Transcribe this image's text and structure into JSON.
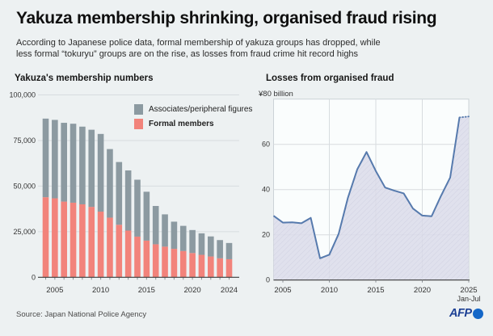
{
  "page": {
    "title": "Yakuza membership shrinking, organised fraud rising",
    "subtitle_line1": "According to Japanese police data, formal membership of yakuza groups has dropped, while",
    "subtitle_line2": "less formal “tokuryu” groups are on the rise, as losses from fraud crime hit record highs",
    "footer": {
      "source": "Source: Japan National Police Agency",
      "logo_text": "AFP"
    }
  },
  "colors": {
    "background": "#edf1f2",
    "bar_associates": "#8c9aa1",
    "bar_formal": "#f2837b",
    "fraud_line": "#567aad",
    "fraud_fill": "#dcdcea",
    "fraud_fill_hatch": "#c9cade",
    "plot_background": "#fafdfd",
    "gridline": "#d7dcdf",
    "axis_line": "#3c3c3c",
    "afp_blue": "#1b3f94",
    "afp_circle_blue": "#1467c8"
  },
  "chart_data": [
    {
      "type": "bar",
      "title": "Yakuza's membership numbers",
      "stacked": true,
      "grid": "horizontal",
      "legend_position": "top-right",
      "categories": [
        2004,
        2005,
        2006,
        2007,
        2008,
        2009,
        2010,
        2011,
        2012,
        2013,
        2014,
        2015,
        2016,
        2017,
        2018,
        2019,
        2020,
        2021,
        2022,
        2023,
        2024
      ],
      "series": [
        {
          "name": "Formal members",
          "color": "#f2837b",
          "values": [
            43900,
            43300,
            41500,
            40900,
            40000,
            38600,
            36000,
            32700,
            28800,
            25600,
            22300,
            20100,
            18100,
            16800,
            15600,
            14400,
            13300,
            12300,
            11400,
            10400,
            9900
          ]
        },
        {
          "name": "Associates/peripheral figures",
          "color": "#8c9aa1",
          "values": [
            43100,
            43000,
            43200,
            43300,
            42600,
            42300,
            42600,
            37600,
            34400,
            33000,
            31200,
            26800,
            21000,
            17700,
            14900,
            13800,
            12600,
            11800,
            11000,
            10000,
            8900
          ]
        }
      ],
      "totals": [
        87000,
        86300,
        84700,
        84200,
        82600,
        80900,
        78600,
        70300,
        63200,
        58600,
        53500,
        46900,
        39100,
        34500,
        30500,
        28200,
        25900,
        24100,
        22400,
        20400,
        18800
      ],
      "ylim": [
        0,
        100000
      ],
      "yticks": [
        {
          "value": 100000,
          "label": "100,000"
        },
        {
          "value": 75000,
          "label": "75,000"
        },
        {
          "value": 50000,
          "label": "50,000"
        },
        {
          "value": 25000,
          "label": "25,000"
        },
        {
          "value": 0,
          "label": "0"
        }
      ],
      "xticks": [
        2005,
        2010,
        2015,
        2020,
        2024
      ]
    },
    {
      "type": "area",
      "title": "Losses from organised fraud",
      "unit_label": "¥80 billion",
      "x": [
        2004,
        2005,
        2006,
        2007,
        2008,
        2009,
        2010,
        2011,
        2012,
        2013,
        2014,
        2015,
        2016,
        2017,
        2018,
        2019,
        2020,
        2021,
        2022,
        2023,
        2024,
        2025
      ],
      "values": [
        28.4,
        25.4,
        25.5,
        25.1,
        27.5,
        9.6,
        11.2,
        20.4,
        36.4,
        48.9,
        56.6,
        48.2,
        40.9,
        39.5,
        38.3,
        31.6,
        28.5,
        28.2,
        37.1,
        45.3,
        71.9,
        72.3
      ],
      "dashed_from_index": 20,
      "ylim": [
        0,
        80
      ],
      "xlim": [
        2004,
        2025
      ],
      "yticks": [
        {
          "value": 60,
          "label": "60"
        },
        {
          "value": 40,
          "label": "40"
        },
        {
          "value": 20,
          "label": "20"
        },
        {
          "value": 0,
          "label": "0"
        }
      ],
      "ygrid": [
        60,
        40,
        20
      ],
      "xgrid": [
        2010,
        2015,
        2020
      ],
      "xticks": [
        2005,
        2010,
        2015,
        2020,
        2025
      ],
      "xtick_sublabel": {
        "year": 2025,
        "label": "Jan-Jul"
      }
    }
  ]
}
